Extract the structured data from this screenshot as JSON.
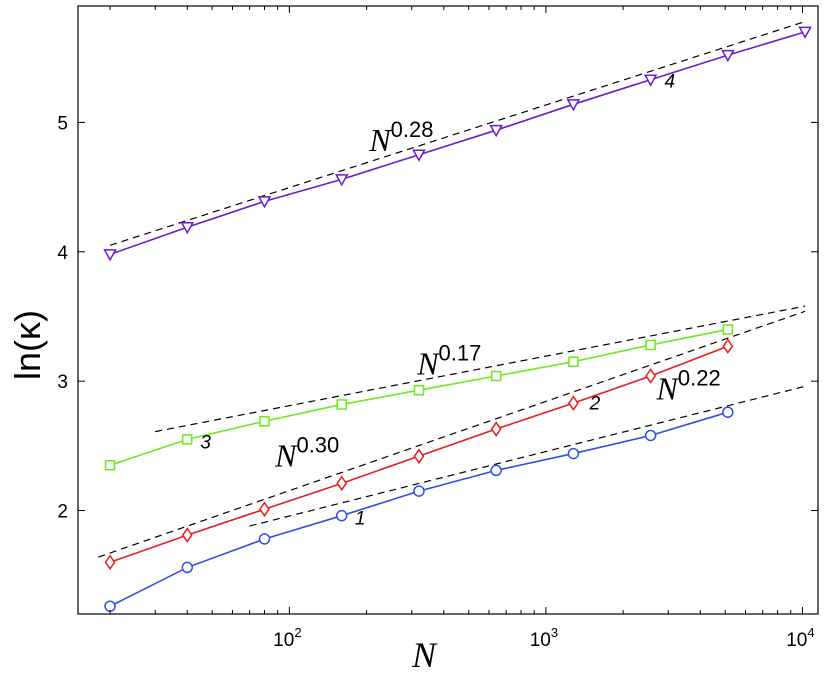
{
  "chart_data": {
    "type": "line",
    "xlabel": "N",
    "ylabel": "ln(κ)",
    "xscale": "log",
    "xlim": [
      15,
      11500
    ],
    "ylim": [
      1.2,
      5.9
    ],
    "x_ticks": [
      {
        "value": 100,
        "base": "10",
        "exp": "2"
      },
      {
        "value": 1000,
        "base": "10",
        "exp": "3"
      },
      {
        "value": 10000,
        "base": "10",
        "exp": "4"
      }
    ],
    "y_ticks": [
      2,
      3,
      4,
      5
    ],
    "grid": false,
    "series": [
      {
        "label": "1",
        "marker": "circle",
        "color": "#2f50e0",
        "x": [
          20,
          40,
          80,
          160,
          320,
          640,
          1280,
          2560,
          5120
        ],
        "y": [
          1.26,
          1.56,
          1.78,
          1.96,
          2.15,
          2.31,
          2.44,
          2.58,
          2.76
        ]
      },
      {
        "label": "2",
        "marker": "diamond",
        "color": "#e81c1c",
        "x": [
          20,
          40,
          80,
          160,
          320,
          640,
          1280,
          2560,
          5120
        ],
        "y": [
          1.6,
          1.81,
          2.01,
          2.21,
          2.42,
          2.63,
          2.83,
          3.04,
          3.27
        ]
      },
      {
        "label": "3",
        "marker": "square",
        "color": "#6aec1c",
        "x": [
          20,
          40,
          80,
          160,
          320,
          640,
          1280,
          2560,
          5120
        ],
        "y": [
          2.35,
          2.55,
          2.69,
          2.82,
          2.93,
          3.04,
          3.15,
          3.28,
          3.4
        ]
      },
      {
        "label": "4",
        "marker": "triangle-down",
        "color": "#6a1ccc",
        "x": [
          20,
          40,
          80,
          160,
          320,
          640,
          1280,
          2560,
          5120,
          10240
        ],
        "y": [
          3.98,
          4.19,
          4.39,
          4.56,
          4.75,
          4.94,
          5.14,
          5.33,
          5.52,
          5.7
        ]
      }
    ],
    "fit_lines": [
      {
        "label_base": "N",
        "label_exp": "0.28",
        "x": [
          20,
          10240
        ],
        "y": [
          4.05,
          5.78
        ]
      },
      {
        "label_base": "N",
        "label_exp": "0.17",
        "x": [
          30,
          10240
        ],
        "y": [
          2.61,
          3.58
        ]
      },
      {
        "label_base": "N",
        "label_exp": "0.30",
        "x": [
          18,
          10240
        ],
        "y": [
          1.64,
          3.54
        ]
      },
      {
        "label_base": "N",
        "label_exp": "0.22",
        "x": [
          70,
          10240
        ],
        "y": [
          1.88,
          2.96
        ]
      }
    ],
    "annotations": [
      {
        "text": "1",
        "x": 180,
        "y": 1.89
      },
      {
        "text": "2",
        "x": 1480,
        "y": 2.78
      },
      {
        "text": "3",
        "x": 45,
        "y": 2.48
      },
      {
        "text": "4",
        "x": 2900,
        "y": 5.27
      }
    ],
    "fit_label_positions": [
      {
        "x": 205,
        "y": 4.78
      },
      {
        "x": 315,
        "y": 3.05
      },
      {
        "x": 88,
        "y": 2.34
      },
      {
        "x": 2700,
        "y": 2.86
      }
    ]
  }
}
